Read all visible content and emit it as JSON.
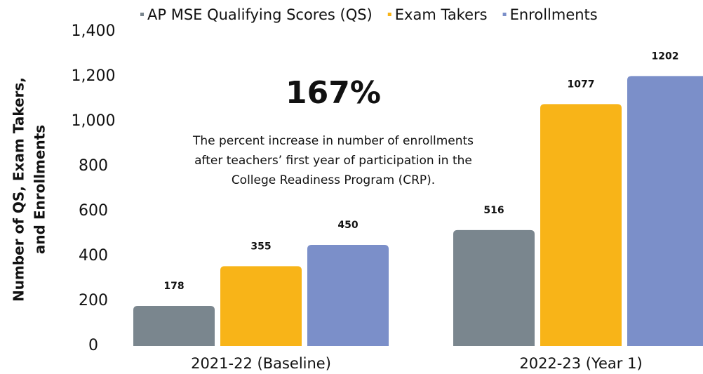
{
  "chart_data": {
    "type": "bar",
    "ylabel_lines": [
      "Number of QS, Exam Takers,",
      "and Enrollments"
    ],
    "categories": [
      "2021-22 (Baseline)",
      "2022-23 (Year 1)"
    ],
    "series": [
      {
        "name": "AP MSE Qualifying Scores (QS)",
        "color": "#7a868e",
        "values": [
          178,
          516
        ]
      },
      {
        "name": "Exam Takers",
        "color": "#f8b418",
        "values": [
          355,
          1077
        ]
      },
      {
        "name": "Enrollments",
        "color": "#7b8fc9",
        "values": [
          450,
          1202
        ]
      }
    ],
    "ylim": [
      0,
      1400
    ],
    "yticks": [
      0,
      200,
      400,
      600,
      800,
      {
        "value": 1000,
        "label": "1,000"
      },
      {
        "value": 1200,
        "label": "1,200"
      },
      {
        "value": 1400,
        "label": "1,400"
      }
    ],
    "grid": false,
    "legend": "top",
    "annotation_title": "167%",
    "annotation_lines": [
      "The percent increase in number of enrollments",
      "after teachers’ first year of participation in the",
      "College Readiness Program (CRP)."
    ]
  }
}
